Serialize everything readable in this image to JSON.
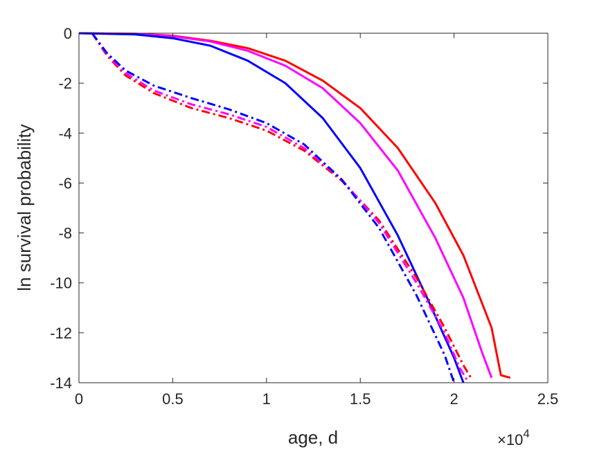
{
  "chart_data": {
    "type": "line",
    "xlabel": "age, d",
    "ylabel": "ln survival probability",
    "x_exponent": {
      "base": "×10",
      "power": "4"
    },
    "xlim": [
      0,
      2.5
    ],
    "ylim": [
      -14,
      0
    ],
    "x_ticks": [
      0,
      0.5,
      1,
      1.5,
      2,
      2.5
    ],
    "x_tick_labels": [
      "0",
      "0.5",
      "1",
      "1.5",
      "2",
      "2.5"
    ],
    "y_ticks": [
      0,
      -2,
      -4,
      -6,
      -8,
      -10,
      -12,
      -14
    ],
    "y_tick_labels": [
      "0",
      "-2",
      "-4",
      "-6",
      "-8",
      "-10",
      "-12",
      "-14"
    ],
    "grid": false,
    "series": [
      {
        "color": "#ff0000",
        "style": "solid",
        "x": [
          0,
          0.3,
          0.5,
          0.7,
          0.9,
          1.1,
          1.3,
          1.5,
          1.7,
          1.9,
          2.05,
          2.2,
          2.25,
          2.3
        ],
        "y": [
          0,
          -0.02,
          -0.1,
          -0.3,
          -0.6,
          -1.1,
          -1.9,
          -3.0,
          -4.6,
          -6.8,
          -8.9,
          -11.8,
          -13.7,
          -13.8
        ]
      },
      {
        "color": "#ff00ff",
        "style": "solid",
        "x": [
          0,
          0.3,
          0.5,
          0.7,
          0.9,
          1.1,
          1.3,
          1.5,
          1.7,
          1.9,
          2.05,
          2.15,
          2.2
        ],
        "y": [
          0,
          -0.03,
          -0.12,
          -0.33,
          -0.7,
          -1.3,
          -2.2,
          -3.6,
          -5.5,
          -8.2,
          -10.6,
          -12.8,
          -13.8
        ]
      },
      {
        "color": "#0000ff",
        "style": "solid",
        "x": [
          0,
          0.3,
          0.5,
          0.7,
          0.9,
          1.1,
          1.3,
          1.5,
          1.7,
          1.85,
          2.0,
          2.05
        ],
        "y": [
          0,
          -0.05,
          -0.2,
          -0.5,
          -1.1,
          -2.0,
          -3.4,
          -5.4,
          -8.1,
          -10.5,
          -13.0,
          -14.0
        ]
      },
      {
        "color": "#ff0000",
        "style": "dashdot",
        "x": [
          0.07,
          0.15,
          0.25,
          0.4,
          0.6,
          0.8,
          1.0,
          1.2,
          1.4,
          1.6,
          1.8,
          1.95,
          2.05,
          2.09
        ],
        "y": [
          0,
          -0.9,
          -1.7,
          -2.4,
          -3.0,
          -3.4,
          -3.9,
          -4.7,
          -5.9,
          -7.5,
          -9.8,
          -11.8,
          -13.3,
          -13.8
        ]
      },
      {
        "color": "#ff00ff",
        "style": "dashdot",
        "x": [
          0.07,
          0.15,
          0.25,
          0.4,
          0.6,
          0.8,
          1.0,
          1.2,
          1.4,
          1.6,
          1.8,
          1.95,
          2.03,
          2.07
        ],
        "y": [
          0,
          -0.85,
          -1.6,
          -2.3,
          -2.85,
          -3.25,
          -3.75,
          -4.6,
          -5.85,
          -7.6,
          -10.0,
          -12.0,
          -13.4,
          -13.9
        ]
      },
      {
        "color": "#0000ff",
        "style": "dashdot",
        "x": [
          0.07,
          0.15,
          0.25,
          0.4,
          0.6,
          0.8,
          1.0,
          1.2,
          1.4,
          1.6,
          1.8,
          1.95,
          2.0
        ],
        "y": [
          0,
          -0.8,
          -1.5,
          -2.1,
          -2.6,
          -3.05,
          -3.6,
          -4.45,
          -5.85,
          -7.8,
          -10.5,
          -12.9,
          -14.0
        ]
      }
    ]
  }
}
